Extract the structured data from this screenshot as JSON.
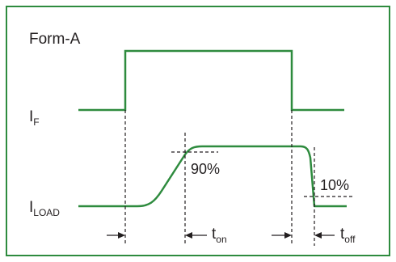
{
  "diagram": {
    "title": "Form-A",
    "labels": {
      "input_current": {
        "main": "I",
        "sub": "F"
      },
      "load_current": {
        "main": "I",
        "sub": "LOAD"
      },
      "turn_on_time": {
        "main": "t",
        "sub": "on"
      },
      "turn_off_time": {
        "main": "t",
        "sub": "off"
      },
      "on_threshold": "90%",
      "off_threshold": "10%"
    },
    "colors": {
      "border": "#2e8b3e",
      "waveform": "#2e8b3e",
      "guides": "#231f20",
      "text": "#231f20"
    }
  }
}
